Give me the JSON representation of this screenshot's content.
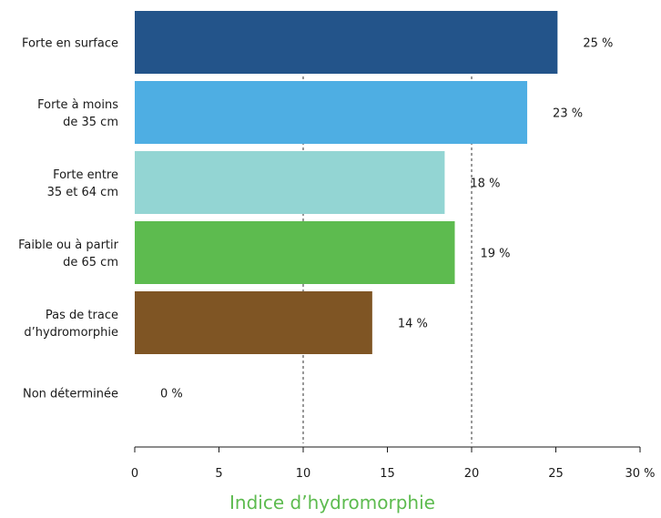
{
  "chart_data": {
    "type": "bar",
    "orientation": "horizontal",
    "categories": [
      [
        "Forte en surface"
      ],
      [
        "Forte à moins",
        "de 35 cm"
      ],
      [
        "Forte entre",
        "35 et  64 cm"
      ],
      [
        "Faible ou à partir",
        "de 65 cm"
      ],
      [
        "Pas de trace",
        "d’hydromorphie"
      ],
      [
        "Non déterminée"
      ]
    ],
    "values": [
      25.1,
      23.3,
      18.4,
      19.0,
      14.1,
      0
    ],
    "value_labels": [
      "25 %",
      "23 %",
      "18 %",
      "19 %",
      "14 %",
      "0 %"
    ],
    "colors": [
      "#23548a",
      "#4eaee3",
      "#93d5d3",
      "#5dbb4f",
      "#7f5524",
      "#ffffff"
    ],
    "xlim": [
      0,
      30
    ],
    "xticks": [
      "0",
      "5",
      "10",
      "15",
      "20",
      "25",
      "30 %"
    ],
    "xtick_values": [
      0,
      5,
      10,
      15,
      20,
      25,
      30
    ],
    "reference_lines": [
      10,
      20
    ],
    "xlabel": "Indice d’hydromorphie",
    "xlabel_color": "#5dbb4f",
    "ylabel": "",
    "title": ""
  }
}
